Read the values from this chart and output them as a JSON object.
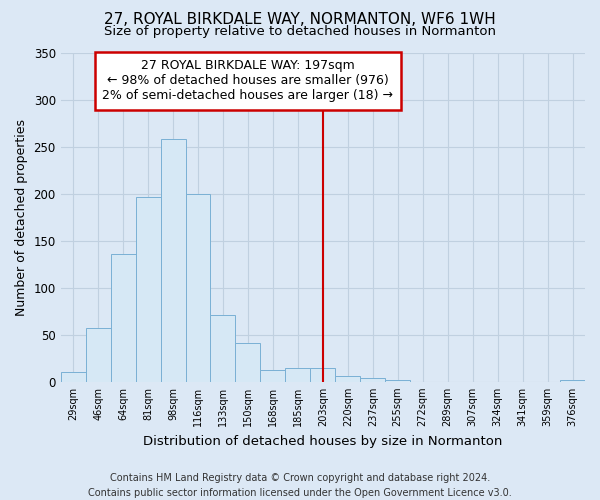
{
  "title": "27, ROYAL BIRKDALE WAY, NORMANTON, WF6 1WH",
  "subtitle": "Size of property relative to detached houses in Normanton",
  "xlabel": "Distribution of detached houses by size in Normanton",
  "ylabel": "Number of detached properties",
  "bar_labels": [
    "29sqm",
    "46sqm",
    "64sqm",
    "81sqm",
    "98sqm",
    "116sqm",
    "133sqm",
    "150sqm",
    "168sqm",
    "185sqm",
    "203sqm",
    "220sqm",
    "237sqm",
    "255sqm",
    "272sqm",
    "289sqm",
    "307sqm",
    "324sqm",
    "341sqm",
    "359sqm",
    "376sqm"
  ],
  "bar_values": [
    10,
    57,
    136,
    196,
    258,
    200,
    71,
    41,
    13,
    15,
    15,
    6,
    4,
    2,
    0,
    0,
    0,
    0,
    0,
    0,
    2
  ],
  "bar_color": "#d6e8f5",
  "bar_edge_color": "#7ab0d4",
  "vline_x_index": 10,
  "vline_color": "#cc0000",
  "annotation_line1": "27 ROYAL BIRKDALE WAY: 197sqm",
  "annotation_line2": "← 98% of detached houses are smaller (976)",
  "annotation_line3": "2% of semi-detached houses are larger (18) →",
  "annotation_box_facecolor": "#ffffff",
  "annotation_box_edgecolor": "#cc0000",
  "ylim": [
    0,
    350
  ],
  "yticks": [
    0,
    50,
    100,
    150,
    200,
    250,
    300,
    350
  ],
  "footer_text": "Contains HM Land Registry data © Crown copyright and database right 2024.\nContains public sector information licensed under the Open Government Licence v3.0.",
  "title_fontsize": 11,
  "subtitle_fontsize": 9.5,
  "xlabel_fontsize": 9.5,
  "ylabel_fontsize": 9,
  "annotation_fontsize": 9,
  "footer_fontsize": 7,
  "background_color": "#dce8f5",
  "grid_color": "#c0d0e0"
}
